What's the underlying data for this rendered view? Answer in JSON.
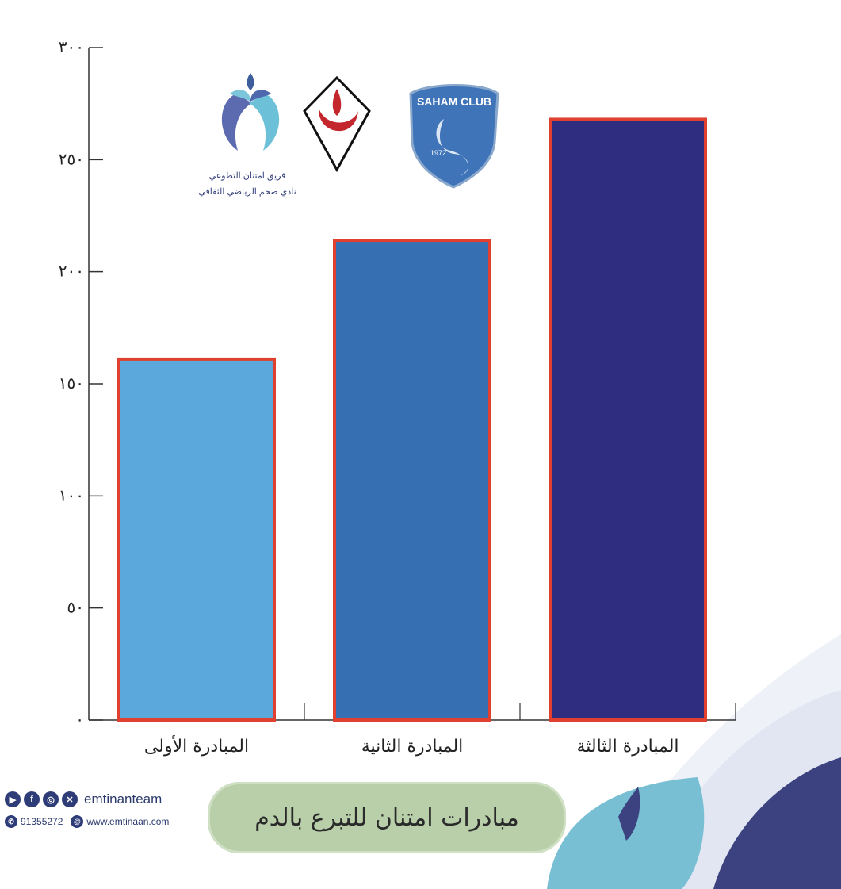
{
  "chart_data": {
    "type": "bar",
    "categories": [
      "المبادرة الأولى",
      "المبادرة الثانية",
      "المبادرة الثالثة"
    ],
    "values": [
      161,
      214,
      268
    ],
    "ylim": [
      0,
      300
    ],
    "yticks": [
      0,
      50,
      100,
      150,
      200,
      250,
      300
    ],
    "ytick_labels": [
      "٠",
      "٥٠",
      "١٠٠",
      "١٥٠",
      "٢٠٠",
      "٢٥٠",
      "٣٠٠"
    ],
    "bar_colors": [
      "#5aa8dc",
      "#3670b2",
      "#2e2d80"
    ],
    "bar_outline": "#e0402f",
    "grid": false,
    "title": "مبادرات امتنان للتبرع بالدم"
  },
  "logos": {
    "team_line1": "فريق امتنان التطوعي",
    "team_line2": "نادي صحم الرياضي الثقافي",
    "club_name": "SAHAM CLUB",
    "club_year": "1972"
  },
  "contacts": {
    "social_handle": "emtinanteam",
    "phone": "91355272",
    "website": "www.emtinaan.com",
    "icons": [
      "youtube-icon",
      "facebook-icon",
      "instagram-icon",
      "x-icon",
      "whatsapp-icon",
      "web-icon"
    ]
  }
}
